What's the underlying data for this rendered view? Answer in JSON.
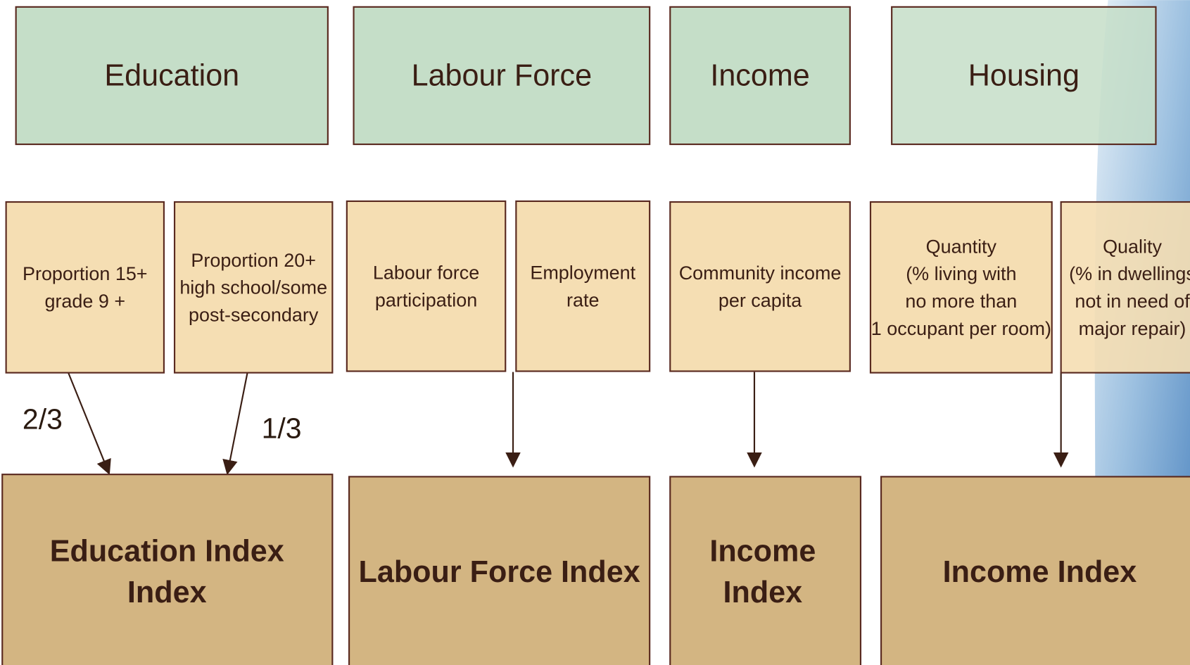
{
  "categories": [
    {
      "title": "Education"
    },
    {
      "title": "Labour Force"
    },
    {
      "title": "Income"
    },
    {
      "title": "Housing"
    }
  ],
  "indicators": [
    {
      "lines": [
        "Proportion 15+",
        "grade 9 +"
      ]
    },
    {
      "lines": [
        "Proportion 20+",
        "high school/some",
        "post-secondary"
      ]
    },
    {
      "lines": [
        "Labour force",
        "participation"
      ]
    },
    {
      "lines": [
        "Employment",
        "rate"
      ]
    },
    {
      "lines": [
        "Community income",
        "per capita"
      ]
    },
    {
      "lines": [
        "Quantity",
        "(% living with",
        "no more than",
        "1 occupant per room)"
      ]
    },
    {
      "lines": [
        "Quality",
        "(% in dwellings",
        "not in need of",
        "major repair)"
      ]
    }
  ],
  "weights": [
    "2/3",
    "1/3"
  ],
  "indices": [
    {
      "lines": [
        "Education Index",
        "Index"
      ]
    },
    {
      "lines": [
        "Labour Force Index"
      ]
    },
    {
      "lines": [
        "Income",
        "Index"
      ]
    },
    {
      "lines": [
        "Income Index"
      ]
    }
  ]
}
